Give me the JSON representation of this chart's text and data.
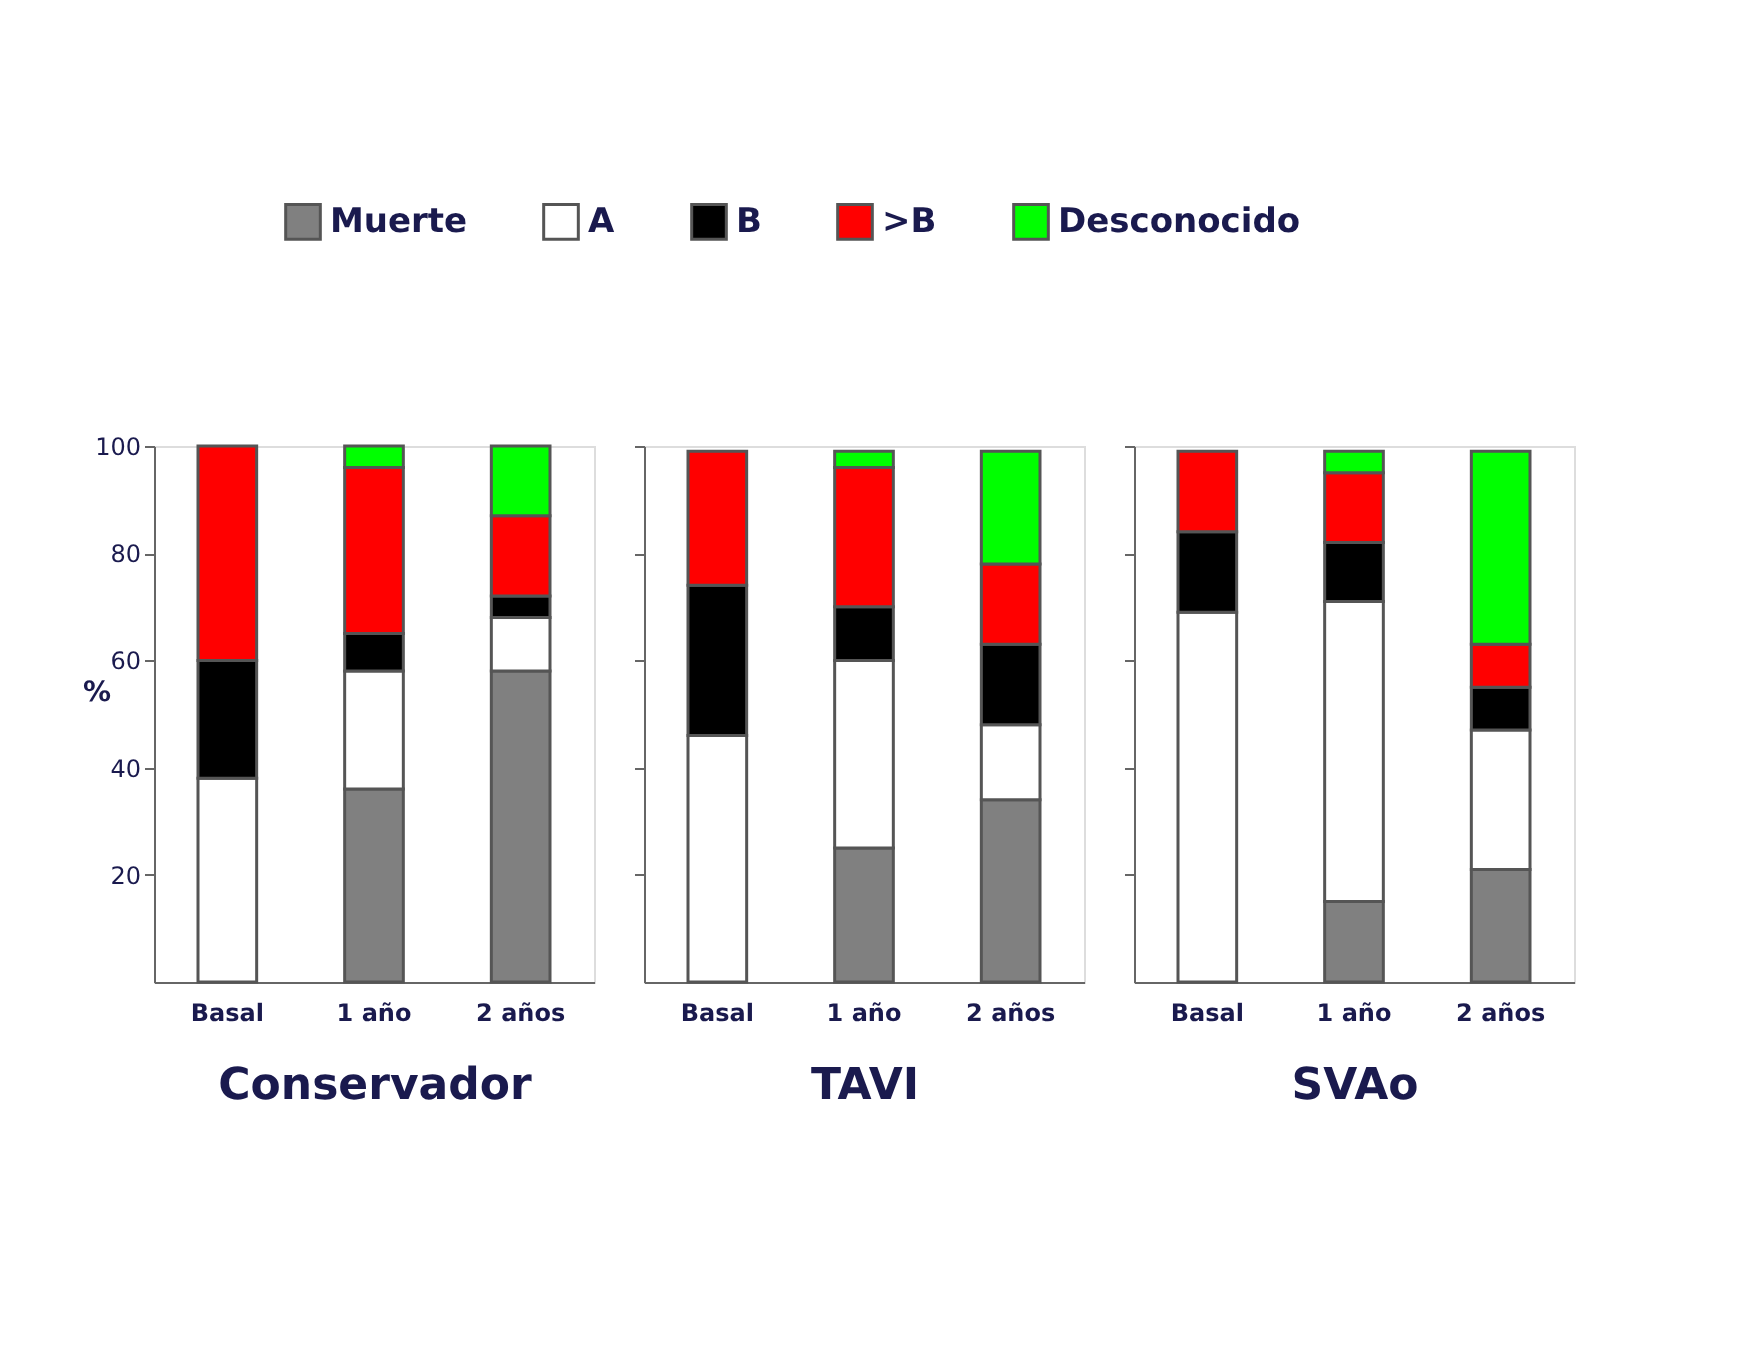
{
  "chart_data": [
    {
      "type": "bar",
      "stacked": true,
      "categories": [
        "Basal",
        "1 año",
        "2 años"
      ],
      "xlabel": "Conservador",
      "ylabel": "%",
      "ylim": [
        0,
        100
      ],
      "yticks": [
        20,
        40,
        60,
        80,
        100
      ],
      "legend": "top",
      "grid": false,
      "series": [
        {
          "name": "Muerte",
          "color": "#808080",
          "values": [
            0,
            36,
            58
          ]
        },
        {
          "name": "A",
          "color": "#ffffff",
          "values": [
            38,
            22,
            10
          ]
        },
        {
          "name": "B",
          "color": "#000000",
          "values": [
            22,
            7,
            4
          ]
        },
        {
          "name": ">B",
          "color": "#ff0000",
          "values": [
            40,
            31,
            15
          ]
        },
        {
          "name": "Desconocido",
          "color": "#00ff00",
          "values": [
            0,
            4,
            13
          ]
        }
      ]
    },
    {
      "type": "bar",
      "stacked": true,
      "categories": [
        "Basal",
        "1 año",
        "2 años"
      ],
      "xlabel": "TAVI",
      "ylim": [
        0,
        100
      ],
      "yticks": [
        {
          "value": 20,
          "label": null
        },
        {
          "value": 40,
          "label": null
        },
        {
          "value": 60,
          "label": null
        },
        {
          "value": 80,
          "label": null
        },
        {
          "value": 100,
          "label": null
        }
      ],
      "tick_labels": "x",
      "grid": false,
      "series": [
        {
          "color": "#808080",
          "values": [
            0,
            25,
            34
          ]
        },
        {
          "color": "#ffffff",
          "values": [
            46,
            35,
            14
          ]
        },
        {
          "color": "#000000",
          "values": [
            28,
            10,
            15
          ]
        },
        {
          "color": "#ff0000",
          "values": [
            25,
            26,
            15
          ]
        },
        {
          "color": "#00ff00",
          "values": [
            0,
            3,
            21
          ]
        }
      ]
    },
    {
      "type": "bar",
      "stacked": true,
      "categories": [
        "Basal",
        "1 año",
        "2 años"
      ],
      "xlabel": "SVAo",
      "ylim": [
        0,
        100
      ],
      "yticks": [
        {
          "value": 20,
          "label": null
        },
        {
          "value": 40,
          "label": null
        },
        {
          "value": 60,
          "label": null
        },
        {
          "value": 80,
          "label": null
        },
        {
          "value": 100,
          "label": null
        }
      ],
      "tick_labels": "x",
      "grid": false,
      "series": [
        {
          "color": "#808080",
          "values": [
            0,
            15,
            21
          ]
        },
        {
          "color": "#ffffff",
          "values": [
            69,
            56,
            26
          ]
        },
        {
          "color": "#000000",
          "values": [
            15,
            11,
            8
          ]
        },
        {
          "color": "#ff0000",
          "values": [
            15,
            13,
            8
          ]
        },
        {
          "color": "#00ff00",
          "values": [
            0,
            4,
            36
          ]
        }
      ]
    }
  ]
}
